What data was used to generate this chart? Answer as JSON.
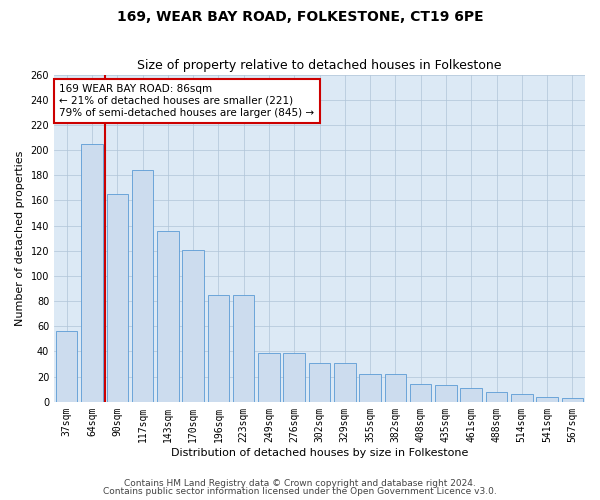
{
  "title": "169, WEAR BAY ROAD, FOLKESTONE, CT19 6PE",
  "subtitle": "Size of property relative to detached houses in Folkestone",
  "xlabel": "Distribution of detached houses by size in Folkestone",
  "ylabel": "Number of detached properties",
  "bar_heights": [
    56,
    205,
    165,
    184,
    136,
    121,
    85,
    85,
    39,
    39,
    31,
    31,
    22,
    22,
    14,
    13,
    11,
    8,
    6,
    4,
    3
  ],
  "bar_labels": [
    "37sqm",
    "64sqm",
    "90sqm",
    "117sqm",
    "143sqm",
    "170sqm",
    "196sqm",
    "223sqm",
    "249sqm",
    "276sqm",
    "302sqm",
    "329sqm",
    "355sqm",
    "382sqm",
    "408sqm",
    "435sqm",
    "461sqm",
    "488sqm",
    "514sqm",
    "541sqm",
    "567sqm"
  ],
  "bar_color": "#ccdcee",
  "bar_edge_color": "#5b9bd5",
  "vline_color": "#cc0000",
  "annotation_text": "169 WEAR BAY ROAD: 86sqm\n← 21% of detached houses are smaller (221)\n79% of semi-detached houses are larger (845) →",
  "ylim": [
    0,
    260
  ],
  "yticks": [
    0,
    20,
    40,
    60,
    80,
    100,
    120,
    140,
    160,
    180,
    200,
    220,
    240,
    260
  ],
  "background_color": "#ffffff",
  "plot_bg_color": "#dce9f5",
  "grid_color": "#b0c4d8",
  "footer_line1": "Contains HM Land Registry data © Crown copyright and database right 2024.",
  "footer_line2": "Contains public sector information licensed under the Open Government Licence v3.0.",
  "title_fontsize": 10,
  "subtitle_fontsize": 9,
  "xlabel_fontsize": 8,
  "ylabel_fontsize": 8,
  "tick_fontsize": 7,
  "annot_fontsize": 7.5,
  "footer_fontsize": 6.5
}
